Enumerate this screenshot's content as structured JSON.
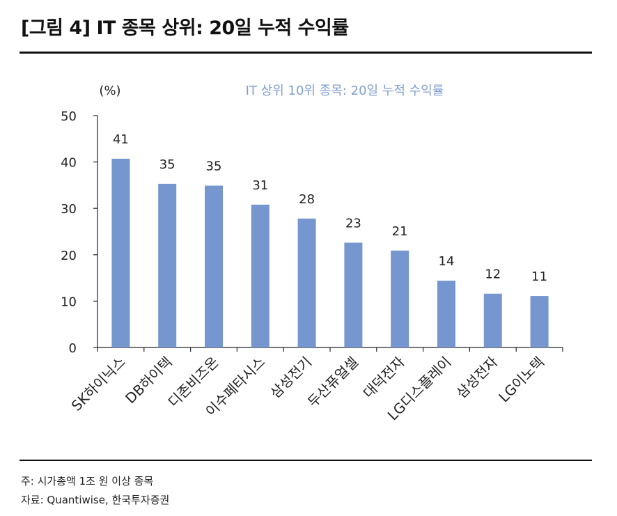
{
  "figure_title": "[그림 4] IT 종목 상위: 20일 누적 수익률",
  "chart_data": {
    "type": "bar",
    "title": "IT 상위 10위 종목: 20일 누적 수익률",
    "unit_label": "(%)",
    "categories": [
      "SK하이닉스",
      "DB하이텍",
      "디존비즈온",
      "이수페타시스",
      "삼성전기",
      "두산퓨얼셀",
      "대덕전자",
      "LG디스플레이",
      "삼성전자",
      "LG이노텍"
    ],
    "values": [
      40.7,
      35.3,
      34.9,
      30.8,
      27.8,
      22.6,
      20.9,
      14.4,
      11.6,
      11.1
    ],
    "value_labels": [
      "41",
      "35",
      "35",
      "31",
      "28",
      "23",
      "21",
      "14",
      "12",
      "11"
    ],
    "ylim": [
      0,
      50
    ],
    "yticks": [
      0,
      10,
      20,
      30,
      40,
      50
    ],
    "bar_color": "#7596cf",
    "grid": false,
    "xlabel": "",
    "ylabel": ""
  },
  "notes": {
    "note": "주: 시가총액 1조 원 이상 종목",
    "source": "자료: Quantiwise, 한국투자증권"
  }
}
